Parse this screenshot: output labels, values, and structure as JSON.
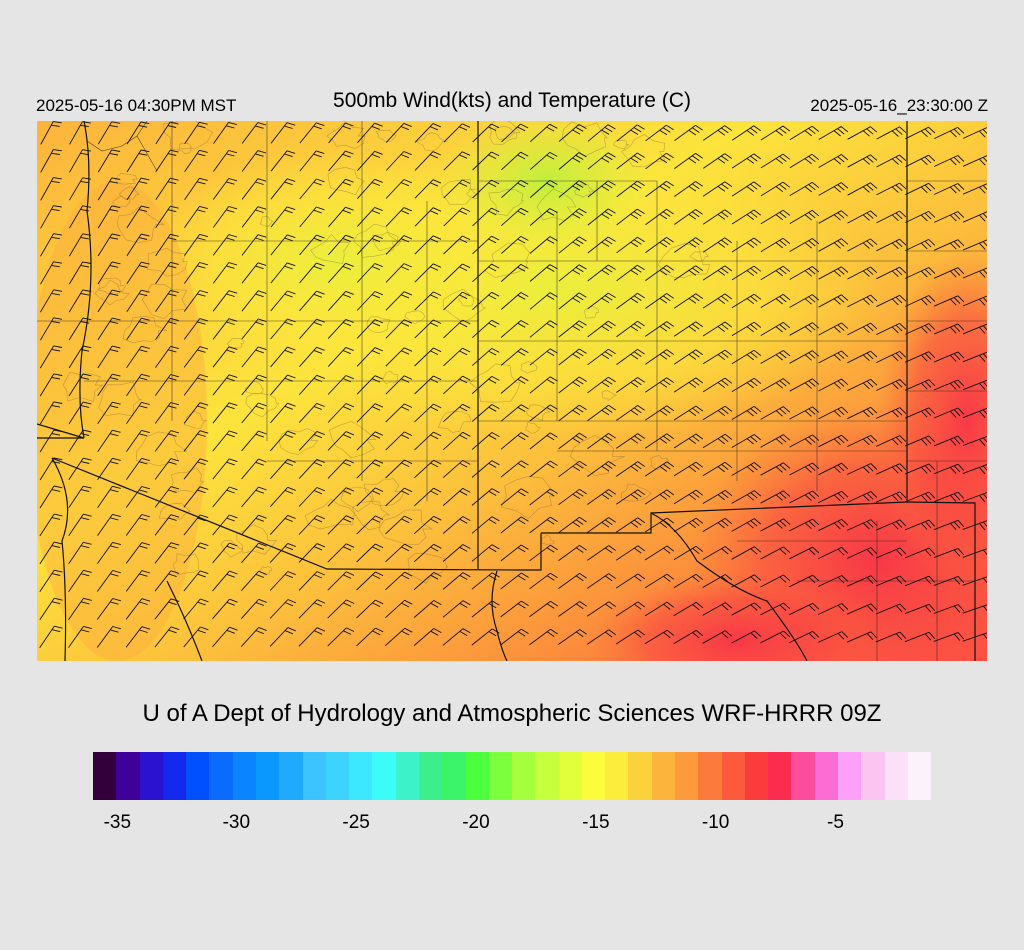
{
  "header": {
    "valid_local": "2025-05-16 04:30PM MST",
    "title": "500mb Wind(kts) and Temperature (C)",
    "valid_utc": "2025-05-16_23:30:00 Z"
  },
  "credit": "U of A Dept of Hydrology and Atmospheric Sciences WRF-HRRR 09Z",
  "map": {
    "field": "500mb temperature (C) shaded, wind barbs (kts)",
    "temperature_range_c": [
      -18,
      -5
    ],
    "coolest_region": "north-central (about -17 to -18 C)",
    "warmest_region": "southeast (about -6 C)"
  },
  "colorbar": {
    "colors": [
      "#34003c",
      "#40009a",
      "#2a12d0",
      "#1428ee",
      "#0050ff",
      "#0a6cff",
      "#0a84ff",
      "#0a98ff",
      "#20aaff",
      "#3cc4ff",
      "#3cd4ff",
      "#3ce8ff",
      "#3cfcfa",
      "#3cf2c8",
      "#3cee8c",
      "#3cf46a",
      "#4cff3c",
      "#7cff3c",
      "#a4ff3c",
      "#c6ff3c",
      "#e2ff3c",
      "#fcfc3c",
      "#fcec3c",
      "#fcd23c",
      "#fcb43c",
      "#fc9a3c",
      "#fc7a3c",
      "#fc5a3c",
      "#fc3c3c",
      "#fc2c50",
      "#fc4c9c",
      "#fc6cd2",
      "#fca0f8",
      "#fcc4f0",
      "#fce0fa",
      "#fcf2fc"
    ],
    "ticks": [
      {
        "label": "-35",
        "frac": 0.029
      },
      {
        "label": "-30",
        "frac": 0.171
      },
      {
        "label": "-25",
        "frac": 0.314
      },
      {
        "label": "-20",
        "frac": 0.457
      },
      {
        "label": "-15",
        "frac": 0.6
      },
      {
        "label": "-10",
        "frac": 0.743
      },
      {
        "label": "-5",
        "frac": 0.886
      }
    ]
  }
}
